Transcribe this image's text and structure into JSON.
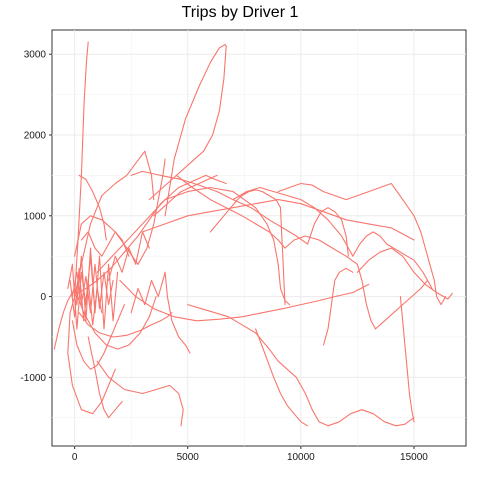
{
  "chart_data": {
    "type": "line",
    "title": "Trips by Driver 1",
    "xlabel": "",
    "ylabel": "",
    "xlim": [
      -1000,
      17300
    ],
    "ylim": [
      -1850,
      3300
    ],
    "x_ticks": [
      0,
      5000,
      10000,
      15000
    ],
    "x_tick_labels": [
      "0",
      "5000",
      "10000",
      "15000"
    ],
    "y_ticks": [
      -1000,
      0,
      1000,
      2000,
      3000
    ],
    "y_tick_labels": [
      "-1000",
      "0",
      "1000",
      "2000",
      "3000"
    ],
    "grid": true,
    "legend": "none",
    "line_color": "#F8766D",
    "series": [
      {
        "x": [
          0,
          150,
          300,
          420,
          520,
          600
        ],
        "y": [
          0,
          700,
          1500,
          2400,
          2900,
          3150
        ]
      },
      {
        "x": [
          0,
          300,
          700,
          1200,
          1800,
          2300,
          2700,
          3100,
          3400,
          3500
        ],
        "y": [
          0,
          400,
          900,
          1250,
          1400,
          1500,
          1650,
          1800,
          1500,
          1200
        ]
      },
      {
        "x": [
          0,
          -200,
          -300,
          -100,
          300,
          800,
          1200,
          1500,
          1800
        ],
        "y": [
          0,
          -200,
          -700,
          -1100,
          -1400,
          -1450,
          -1300,
          -1100,
          -900
        ]
      },
      {
        "x": [
          0,
          200,
          500,
          1000,
          1600,
          2200,
          2800,
          3300,
          3800,
          4200,
          4600,
          5000,
          5400,
          5800,
          6200,
          6700
        ],
        "y": [
          0,
          50,
          100,
          200,
          350,
          550,
          750,
          950,
          1150,
          1250,
          1350,
          1400,
          1450,
          1500,
          1450,
          1400
        ]
      },
      {
        "x": [
          4000,
          4400,
          4900,
          5500,
          6000,
          6400,
          6650,
          6700
        ],
        "y": [
          1000,
          1700,
          2200,
          2600,
          2900,
          3080,
          3120,
          3100
        ]
      },
      {
        "x": [
          6700,
          6600,
          6400,
          6100,
          5700,
          5300,
          4900,
          4500,
          4100,
          3700,
          3300
        ],
        "y": [
          3100,
          2700,
          2300,
          2000,
          1800,
          1700,
          1600,
          1500,
          1400,
          1300,
          1200
        ]
      },
      {
        "x": [
          2500,
          3000,
          3800,
          4700,
          5500,
          6300,
          7000,
          7800,
          8600,
          9200,
          9800,
          10300
        ],
        "y": [
          1500,
          1550,
          1500,
          1450,
          1380,
          1300,
          1200,
          1100,
          950,
          850,
          750,
          650
        ]
      },
      {
        "x": [
          10300,
          10600,
          10900,
          11200,
          11500,
          11800,
          12000,
          12100
        ],
        "y": [
          650,
          900,
          1050,
          1100,
          1050,
          950,
          750,
          500
        ]
      },
      {
        "x": [
          3000,
          4000,
          5000,
          6000,
          7000,
          8000,
          9000,
          10000,
          11000,
          12000,
          13000,
          14000,
          15000
        ],
        "y": [
          800,
          900,
          1000,
          1050,
          1100,
          1150,
          1200,
          1150,
          1050,
          950,
          900,
          850,
          700
        ]
      },
      {
        "x": [
          9000,
          9500,
          10000,
          10500,
          11000,
          11500,
          12000,
          12500,
          13000,
          13500,
          14000,
          14500,
          15000,
          15300
        ],
        "y": [
          1300,
          1350,
          1400,
          1380,
          1300,
          1250,
          1200,
          1250,
          1300,
          1350,
          1400,
          1200,
          1000,
          800
        ]
      },
      {
        "x": [
          15300,
          15500,
          15700,
          15900,
          16000,
          16200,
          16400
        ],
        "y": [
          800,
          600,
          400,
          200,
          0,
          -100,
          0
        ]
      },
      {
        "x": [
          12500,
          13000,
          13500,
          14000,
          14500,
          15000,
          15500,
          16000,
          16500,
          16700
        ],
        "y": [
          300,
          450,
          550,
          600,
          500,
          300,
          150,
          50,
          -30,
          40
        ]
      },
      {
        "x": [
          5000,
          5600,
          6200,
          6800,
          7400,
          8000,
          8600,
          9000,
          9400,
          9800,
          10200
        ],
        "y": [
          -100,
          -150,
          -200,
          -250,
          -350,
          -450,
          -650,
          -800,
          -900,
          -1000,
          -1200
        ]
      },
      {
        "x": [
          10200,
          10500,
          10800,
          11200,
          11700,
          12200,
          12700,
          13200,
          13700,
          14200,
          14600,
          15000
        ],
        "y": [
          -1200,
          -1400,
          -1550,
          -1600,
          -1550,
          -1450,
          -1400,
          -1450,
          -1550,
          -1600,
          -1580,
          -1500
        ]
      },
      {
        "x": [
          8000,
          8400,
          8800,
          9100,
          9400,
          9700,
          10000,
          10300
        ],
        "y": [
          -400,
          -700,
          -1000,
          -1200,
          -1350,
          -1450,
          -1550,
          -1600
        ]
      },
      {
        "x": [
          1000,
          1500,
          2200,
          3000,
          3600,
          4200,
          4600,
          4800,
          4700
        ],
        "y": [
          -800,
          -1000,
          -1150,
          -1200,
          -1150,
          -1100,
          -1200,
          -1400,
          -1600
        ]
      },
      {
        "x": [
          600,
          900,
          1100,
          1300,
          1500,
          1800,
          2100
        ],
        "y": [
          -500,
          -900,
          -1200,
          -1400,
          -1500,
          -1400,
          -1300
        ]
      },
      {
        "x": [
          -900,
          -700,
          -500,
          -300,
          -100,
          0
        ],
        "y": [
          -650,
          -400,
          -200,
          -50,
          50,
          100
        ]
      },
      {
        "x": [
          0,
          300,
          700,
          1200,
          1800,
          2300,
          2800
        ],
        "y": [
          500,
          900,
          1000,
          950,
          800,
          600,
          400
        ]
      },
      {
        "x": [
          2800,
          3200,
          3500,
          3700,
          3900,
          4000
        ],
        "y": [
          400,
          600,
          900,
          1200,
          1500,
          1700
        ]
      },
      {
        "x": [
          0,
          400,
          900,
          1400,
          1900,
          2400,
          2900,
          3300,
          3600
        ],
        "y": [
          100,
          -200,
          -450,
          -600,
          -650,
          -600,
          -450,
          -250,
          0
        ]
      },
      {
        "x": [
          200,
          500,
          800,
          1100,
          1300,
          1400
        ],
        "y": [
          1500,
          1450,
          1300,
          1100,
          900,
          700
        ]
      },
      {
        "x": [
          1000,
          2000,
          3000,
          4000,
          5000,
          6000,
          7000,
          8000,
          8500,
          8800,
          9000
        ],
        "y": [
          300,
          600,
          900,
          1200,
          1300,
          1350,
          1300,
          1100,
          900,
          700,
          400
        ]
      },
      {
        "x": [
          9000,
          9100,
          9300,
          9500
        ],
        "y": [
          400,
          100,
          -50,
          -100
        ]
      },
      {
        "x": [
          4500,
          5200,
          6000,
          6700,
          7400,
          8000,
          8600,
          9000,
          9300
        ],
        "y": [
          1500,
          1350,
          1200,
          1100,
          1000,
          900,
          800,
          700,
          600
        ]
      },
      {
        "x": [
          9300,
          9700,
          10200,
          10800,
          11400,
          12000,
          12500
        ],
        "y": [
          600,
          700,
          750,
          700,
          600,
          500,
          400
        ]
      },
      {
        "x": [
          12500,
          12700,
          12900,
          13100,
          13300
        ],
        "y": [
          400,
          200,
          -100,
          -300,
          -400
        ]
      },
      {
        "x": [
          13300,
          13700,
          14100,
          14500,
          14900,
          15300,
          15600
        ],
        "y": [
          -400,
          -300,
          -200,
          -100,
          0,
          100,
          200
        ]
      },
      {
        "x": [
          2000,
          2700,
          3500,
          4400,
          5400,
          6400,
          7400,
          8300,
          9200,
          10000,
          10800,
          11500,
          12300,
          13000
        ],
        "y": [
          200,
          0,
          -150,
          -250,
          -300,
          -280,
          -250,
          -200,
          -150,
          -100,
          -50,
          0,
          50,
          150
        ]
      },
      {
        "x": [
          7000,
          7600,
          8200,
          8800,
          9400,
          10000,
          10600,
          11200,
          11800,
          12300
        ],
        "y": [
          1200,
          1300,
          1350,
          1300,
          1250,
          1200,
          1100,
          950,
          750,
          500
        ]
      },
      {
        "x": [
          12300,
          12600,
          12900,
          13200,
          13500,
          13800
        ],
        "y": [
          500,
          650,
          750,
          800,
          750,
          650
        ]
      },
      {
        "x": [
          13800,
          14100,
          14400,
          14700,
          15000,
          15400,
          15800
        ],
        "y": [
          650,
          600,
          550,
          500,
          450,
          300,
          100
        ]
      },
      {
        "x": [
          4000,
          4100,
          4300,
          4600,
          4900,
          5100
        ],
        "y": [
          300,
          0,
          -300,
          -500,
          -600,
          -700
        ]
      },
      {
        "x": [
          -100,
          100,
          400,
          700,
          1000,
          1300,
          1600,
          1900,
          2200
        ],
        "y": [
          -300,
          -600,
          -800,
          -900,
          -850,
          -700,
          -500,
          -300,
          -100
        ]
      },
      {
        "x": [
          200,
          600,
          1100,
          1700,
          2300,
          2900,
          3400,
          3800,
          4100,
          4300
        ],
        "y": [
          -200,
          -350,
          -450,
          -500,
          -480,
          -420,
          -350,
          -300,
          -250,
          -200
        ]
      },
      {
        "x": [
          6000,
          6300,
          6600,
          6900,
          7200,
          7400
        ],
        "y": [
          800,
          900,
          1000,
          1100,
          1200,
          1250
        ]
      },
      {
        "x": [
          7400,
          7700,
          8000,
          8300,
          8600,
          8900,
          9100
        ],
        "y": [
          1250,
          1300,
          1320,
          1300,
          1250,
          1200,
          1100
        ]
      },
      {
        "x": [
          9100,
          9150,
          9200,
          9250,
          9300
        ],
        "y": [
          1100,
          800,
          500,
          200,
          -100
        ]
      },
      {
        "x": [
          14400,
          14500,
          14600,
          14700,
          14800,
          14900,
          15000
        ],
        "y": [
          0,
          -300,
          -600,
          -900,
          -1200,
          -1400,
          -1550
        ]
      },
      {
        "x": [
          11000,
          11200,
          11300,
          11400,
          11500,
          11700,
          12000,
          12300
        ],
        "y": [
          -600,
          -400,
          -200,
          0,
          200,
          300,
          350,
          300
        ]
      },
      {
        "x": [
          -100,
          100,
          300,
          500,
          700,
          900,
          1100,
          1300,
          1500,
          1700
        ],
        "y": [
          0,
          300,
          -100,
          250,
          -200,
          400,
          -150,
          300,
          -100,
          200
        ]
      },
      {
        "x": [
          -200,
          0,
          200,
          400,
          600,
          800,
          1000,
          1200
        ],
        "y": [
          200,
          -250,
          350,
          -300,
          200,
          -350,
          100,
          -200
        ]
      },
      {
        "x": [
          100,
          300,
          500,
          700,
          900,
          1100,
          1300,
          1500,
          1700,
          1900
        ],
        "y": [
          -100,
          500,
          -300,
          600,
          -200,
          500,
          -400,
          400,
          -300,
          300
        ]
      },
      {
        "x": [
          -300,
          -100,
          100,
          300,
          500,
          700,
          900
        ],
        "y": [
          100,
          400,
          -400,
          300,
          -100,
          500,
          -200
        ]
      },
      {
        "x": [
          300,
          600,
          900,
          1200,
          1500,
          1800,
          2100,
          2400
        ],
        "y": [
          700,
          800,
          600,
          500,
          650,
          800,
          700,
          500
        ]
      },
      {
        "x": [
          1500,
          1800,
          2100,
          2400,
          2700,
          3000,
          3300
        ],
        "y": [
          200,
          500,
          300,
          600,
          400,
          800,
          600
        ]
      },
      {
        "x": [
          2500,
          2800,
          3100,
          3400,
          3700,
          4000
        ],
        "y": [
          -200,
          100,
          -100,
          200,
          0,
          300
        ]
      },
      {
        "x": [
          3500,
          3900,
          4300,
          4700,
          5100,
          5500,
          5900,
          6300
        ],
        "y": [
          1000,
          1100,
          1200,
          1300,
          1350,
          1400,
          1450,
          1500
        ]
      }
    ]
  }
}
